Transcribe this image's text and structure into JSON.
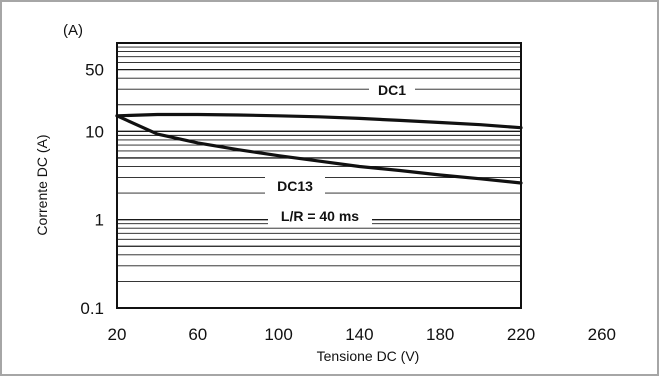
{
  "chart_data": {
    "type": "line",
    "title": "",
    "xlabel": "Tensione DC (V)",
    "ylabel": "Corrente DC (A)",
    "y_unit": "(A)",
    "x_scale": "linear",
    "y_scale": "log",
    "xlim": [
      20,
      260
    ],
    "ylim": [
      0.1,
      100
    ],
    "x_ticks": [
      20,
      60,
      100,
      140,
      180,
      220,
      260
    ],
    "x_tick_labels": [
      "20",
      "60",
      "100",
      "140",
      "180",
      "220",
      "260"
    ],
    "y_ticks": [
      0.1,
      1,
      10,
      50
    ],
    "y_tick_labels": [
      "0.1",
      "1",
      "10",
      "50"
    ],
    "grid": "horizontal, logarithmic",
    "series": [
      {
        "name": "DC1",
        "x": [
          20,
          40,
          60,
          80,
          100,
          120,
          140,
          160,
          180,
          200,
          220
        ],
        "y": [
          15,
          15.5,
          15.5,
          15.3,
          15,
          14.6,
          14,
          13.3,
          12.6,
          11.9,
          11
        ]
      },
      {
        "name": "DC13",
        "x": [
          20,
          40,
          60,
          80,
          100,
          120,
          140,
          160,
          180,
          200,
          220
        ],
        "y": [
          15,
          9.3,
          7.4,
          6.2,
          5.3,
          4.6,
          4,
          3.6,
          3.2,
          2.9,
          2.6
        ]
      }
    ],
    "annotations": [
      {
        "text": "DC1"
      },
      {
        "text": "DC13"
      },
      {
        "text": "L/R = 40 ms"
      }
    ],
    "colors": {
      "line": "#111111",
      "grid": "#1a1a1a",
      "frame": "#a6a6a6"
    }
  }
}
